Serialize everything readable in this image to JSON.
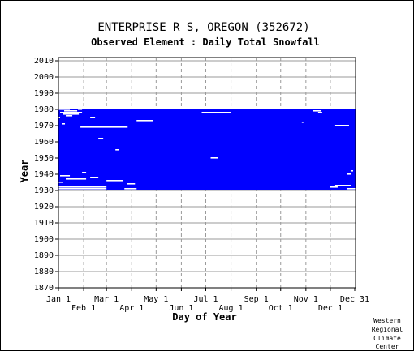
{
  "chart_data": {
    "type": "heatmap",
    "title": "ENTERPRISE R S, OREGON   (352672)",
    "subtitle": "Observed Element : Daily Total Snowfall",
    "xlabel": "Day of Year",
    "ylabel": "Year",
    "ylim": [
      1870,
      2012
    ],
    "y_ticks": [
      2010,
      2000,
      1990,
      1980,
      1970,
      1960,
      1950,
      1940,
      1930,
      1920,
      1910,
      1900,
      1890,
      1880,
      1870
    ],
    "x_ticks_top_row": [
      {
        "label": "Jan 1",
        "day": 1
      },
      {
        "label": "Mar 1",
        "day": 60
      },
      {
        "label": "May 1",
        "day": 121
      },
      {
        "label": "Jul 1",
        "day": 182
      },
      {
        "label": "Sep 1",
        "day": 244
      },
      {
        "label": "Nov 1",
        "day": 305
      },
      {
        "label": "Dec 31",
        "day": 365
      }
    ],
    "x_ticks_bottom_row": [
      {
        "label": "Feb 1",
        "day": 32
      },
      {
        "label": "Apr 1",
        "day": 91
      },
      {
        "label": "Jun 1",
        "day": 152
      },
      {
        "label": "Aug 1",
        "day": 213
      },
      {
        "label": "Oct 1",
        "day": 274
      },
      {
        "label": "Dec 1",
        "day": 335
      }
    ],
    "series": [
      {
        "values_description_key": "record",
        "year_start": 1931,
        "year_end": 1980,
        "day_start": 1,
        "day_end": 366
      }
    ],
    "missing_segments": [
      {
        "year": 1980,
        "day_start": 1,
        "day_end": 15
      },
      {
        "year": 1980,
        "day_start": 25,
        "day_end": 30
      },
      {
        "year": 1979,
        "day_start": 8,
        "day_end": 24
      },
      {
        "year": 1979,
        "day_start": 314,
        "day_end": 324
      },
      {
        "year": 1978,
        "day_start": 3,
        "day_end": 30
      },
      {
        "year": 1978,
        "day_start": 177,
        "day_end": 213
      },
      {
        "year": 1978,
        "day_start": 320,
        "day_end": 325
      },
      {
        "year": 1977,
        "day_start": 6,
        "day_end": 26
      },
      {
        "year": 1976,
        "day_start": 10,
        "day_end": 18
      },
      {
        "year": 1975,
        "day_start": 1,
        "day_end": 3
      },
      {
        "year": 1975,
        "day_start": 40,
        "day_end": 46
      },
      {
        "year": 1973,
        "day_start": 97,
        "day_end": 117
      },
      {
        "year": 1972,
        "day_start": 300,
        "day_end": 302
      },
      {
        "year": 1971,
        "day_start": 5,
        "day_end": 9
      },
      {
        "year": 1970,
        "day_start": 341,
        "day_end": 358
      },
      {
        "year": 1969,
        "day_start": 28,
        "day_end": 86
      },
      {
        "year": 1962,
        "day_start": 50,
        "day_end": 56
      },
      {
        "year": 1955,
        "day_start": 71,
        "day_end": 75
      },
      {
        "year": 1950,
        "day_start": 188,
        "day_end": 197
      },
      {
        "year": 1942,
        "day_start": 360,
        "day_end": 363
      },
      {
        "year": 1941,
        "day_start": 30,
        "day_end": 35
      },
      {
        "year": 1940,
        "day_start": 356,
        "day_end": 360
      },
      {
        "year": 1939,
        "day_start": 3,
        "day_end": 15
      },
      {
        "year": 1938,
        "day_start": 40,
        "day_end": 50
      },
      {
        "year": 1937,
        "day_start": 10,
        "day_end": 35
      },
      {
        "year": 1936,
        "day_start": 60,
        "day_end": 80
      },
      {
        "year": 1935,
        "day_start": 1,
        "day_end": 6
      },
      {
        "year": 1934,
        "day_start": 85,
        "day_end": 95
      },
      {
        "year": 1933,
        "day_start": 341,
        "day_end": 360
      },
      {
        "year": 1932,
        "day_start": 1,
        "day_end": 60
      },
      {
        "year": 1932,
        "day_start": 335,
        "day_end": 344
      },
      {
        "year": 1931,
        "day_start": 1,
        "day_end": 60
      },
      {
        "year": 1931,
        "day_start": 82,
        "day_end": 97
      },
      {
        "year": 1931,
        "day_start": 355,
        "day_end": 366
      }
    ],
    "data_color": "#0000ff",
    "missing_color": "#ffffff",
    "grid": true
  },
  "credit": [
    "Western",
    "Regional",
    "Climate",
    "Center"
  ]
}
